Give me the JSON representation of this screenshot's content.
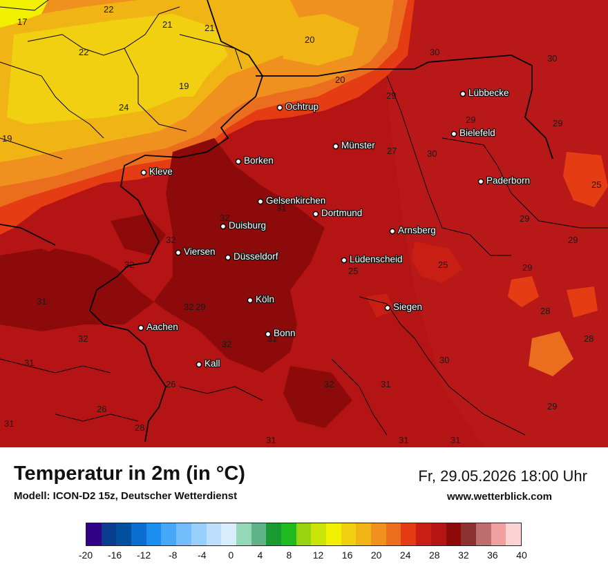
{
  "map": {
    "cities": [
      {
        "name": "Lübbecke"
      },
      {
        "name": "Ochtrup"
      },
      {
        "name": "Bielefeld"
      },
      {
        "name": "Münster"
      },
      {
        "name": "Borken"
      },
      {
        "name": "Kleve"
      },
      {
        "name": "Paderborn"
      },
      {
        "name": "Gelsenkirchen"
      },
      {
        "name": "Dortmund"
      },
      {
        "name": "Duisburg"
      },
      {
        "name": "Arnsberg"
      },
      {
        "name": "Viersen"
      },
      {
        "name": "Düsseldorf"
      },
      {
        "name": "Lüdenscheid"
      },
      {
        "name": "Köln"
      },
      {
        "name": "Siegen"
      },
      {
        "name": "Aachen"
      },
      {
        "name": "Bonn"
      },
      {
        "name": "Kall"
      }
    ],
    "isolabels": [
      "17",
      "22",
      "21",
      "21",
      "20",
      "22",
      "19",
      "20",
      "24",
      "19",
      "30",
      "30",
      "29",
      "29",
      "29",
      "30",
      "27",
      "32",
      "31",
      "29",
      "29",
      "25",
      "32",
      "25",
      "25",
      "32",
      "29",
      "29",
      "31",
      "32",
      "28",
      "32",
      "31",
      "32",
      "28",
      "30",
      "31",
      "26",
      "32",
      "31",
      "26",
      "29",
      "28",
      "31",
      "31",
      "31",
      "31"
    ]
  },
  "footer": {
    "title": "Temperatur in 2m (in °C)",
    "model": "Modell: ICON-D2 15z, Deutscher Wetterdienst",
    "datetime": "Fr, 29.05.2026 18:00 Uhr",
    "website": "www.wetterblick.com"
  },
  "legend": {
    "colors": [
      "#330088",
      "#0a3d8f",
      "#0050a0",
      "#0a6ed0",
      "#1c8ef0",
      "#46a8f8",
      "#72bdfa",
      "#98cffb",
      "#bddffc",
      "#d8ecfd",
      "#94d8b8",
      "#5fb487",
      "#199a32",
      "#1fba1f",
      "#97d40f",
      "#cbe40a",
      "#f0f000",
      "#f0d010",
      "#f0b414",
      "#f0901e",
      "#eb6e1e",
      "#e63c14",
      "#c81e14",
      "#b41414",
      "#8c0a0a",
      "#8c3232",
      "#be6e6e",
      "#f0a0a0",
      "#fad2d2"
    ],
    "ticks": [
      "-20",
      "-16",
      "-12",
      "-8",
      "-4",
      "0",
      "4",
      "8",
      "12",
      "16",
      "20",
      "24",
      "28",
      "32",
      "36",
      "40"
    ]
  }
}
